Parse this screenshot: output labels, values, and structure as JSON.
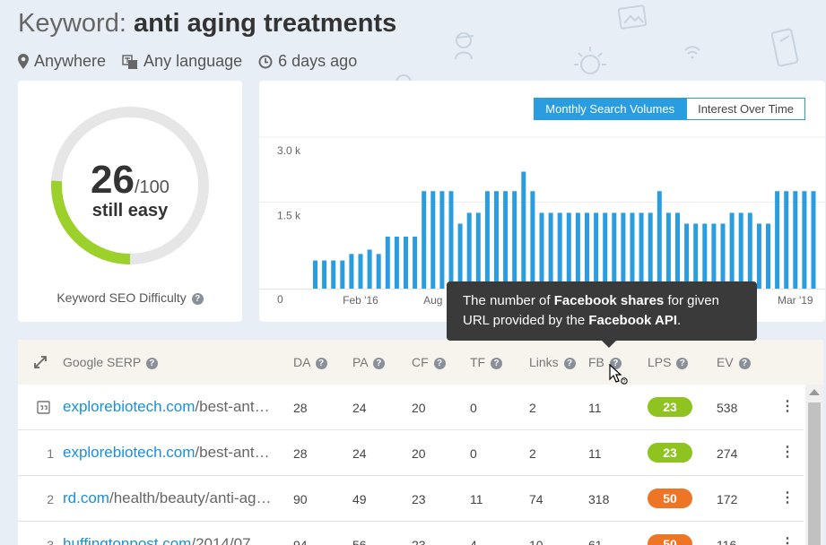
{
  "header": {
    "title_label": "Keyword:",
    "keyword": "anti aging treatments",
    "location": "Anywhere",
    "language": "Any language",
    "updated": "6 days ago"
  },
  "difficulty": {
    "score": "26",
    "max": "/100",
    "score_fraction": 0.26,
    "label": "still easy",
    "caption": "Keyword SEO Difficulty",
    "track_color": "#e6e6e6",
    "fill_color": "#9bd12a"
  },
  "tabs": [
    {
      "label": "Monthly Search Volumes",
      "active": true
    },
    {
      "label": "Interest Over Time",
      "active": false
    }
  ],
  "chart_data": {
    "type": "bar",
    "yticks": [
      "3.0 k",
      "1.5 k",
      "0"
    ],
    "ytick_values": [
      3000,
      1500,
      0
    ],
    "ylim": [
      0,
      3000
    ],
    "xtick_labels": [
      "Feb '16",
      "Aug",
      "Mar '19"
    ],
    "xtick_indices": [
      5,
      13,
      53
    ],
    "values": [
      650,
      650,
      650,
      650,
      800,
      800,
      900,
      800,
      1200,
      1200,
      1200,
      1200,
      2250,
      2250,
      2250,
      2250,
      1500,
      1750,
      1750,
      2250,
      2250,
      2250,
      2250,
      2700,
      2250,
      1750,
      1750,
      1750,
      1750,
      1750,
      1750,
      1750,
      1750,
      1750,
      1750,
      1750,
      1750,
      1750,
      2250,
      1750,
      1750,
      1500,
      1500,
      1500,
      1500,
      1500,
      1750,
      1750,
      1750,
      1500,
      1500,
      2250,
      2250,
      2250,
      2250,
      2250
    ],
    "bar_color": "#2a9ce0",
    "title": "",
    "xlabel": "",
    "ylabel": ""
  },
  "tooltip": {
    "prefix": "The number of ",
    "bold1": "Facebook shares",
    "middle": " for given URL provided by the ",
    "bold2": "Facebook API",
    "suffix": "."
  },
  "table": {
    "columns": [
      "Google SERP",
      "DA",
      "PA",
      "CF",
      "TF",
      "Links",
      "FB",
      "LPS",
      "EV"
    ],
    "rows": [
      {
        "rank": "",
        "domain": "explorebiotech.com",
        "path": "/best-anti-aging-treatments",
        "da": "28",
        "pa": "24",
        "cf": "20",
        "tf": "0",
        "links": "2",
        "fb": "11",
        "lps": "23",
        "lps_color": "#8ec320",
        "ev": "538"
      },
      {
        "rank": "1",
        "domain": "explorebiotech.com",
        "path": "/best-anti-aging-treatments",
        "da": "28",
        "pa": "24",
        "cf": "20",
        "tf": "0",
        "links": "2",
        "fb": "11",
        "lps": "23",
        "lps_color": "#8ec320",
        "ev": "274"
      },
      {
        "rank": "2",
        "domain": "rd.com",
        "path": "/health/beauty/anti-aging-treatments",
        "da": "90",
        "pa": "49",
        "cf": "23",
        "tf": "11",
        "links": "74",
        "fb": "318",
        "lps": "50",
        "lps_color": "#ee7526",
        "ev": "172"
      },
      {
        "rank": "3",
        "domain": "huffingtonpost.com",
        "path": "/2014/07",
        "da": "94",
        "pa": "56",
        "cf": "23",
        "tf": "4",
        "links": "10",
        "fb": "61",
        "lps": "50",
        "lps_color": "#ee7526",
        "ev": "116"
      }
    ]
  }
}
